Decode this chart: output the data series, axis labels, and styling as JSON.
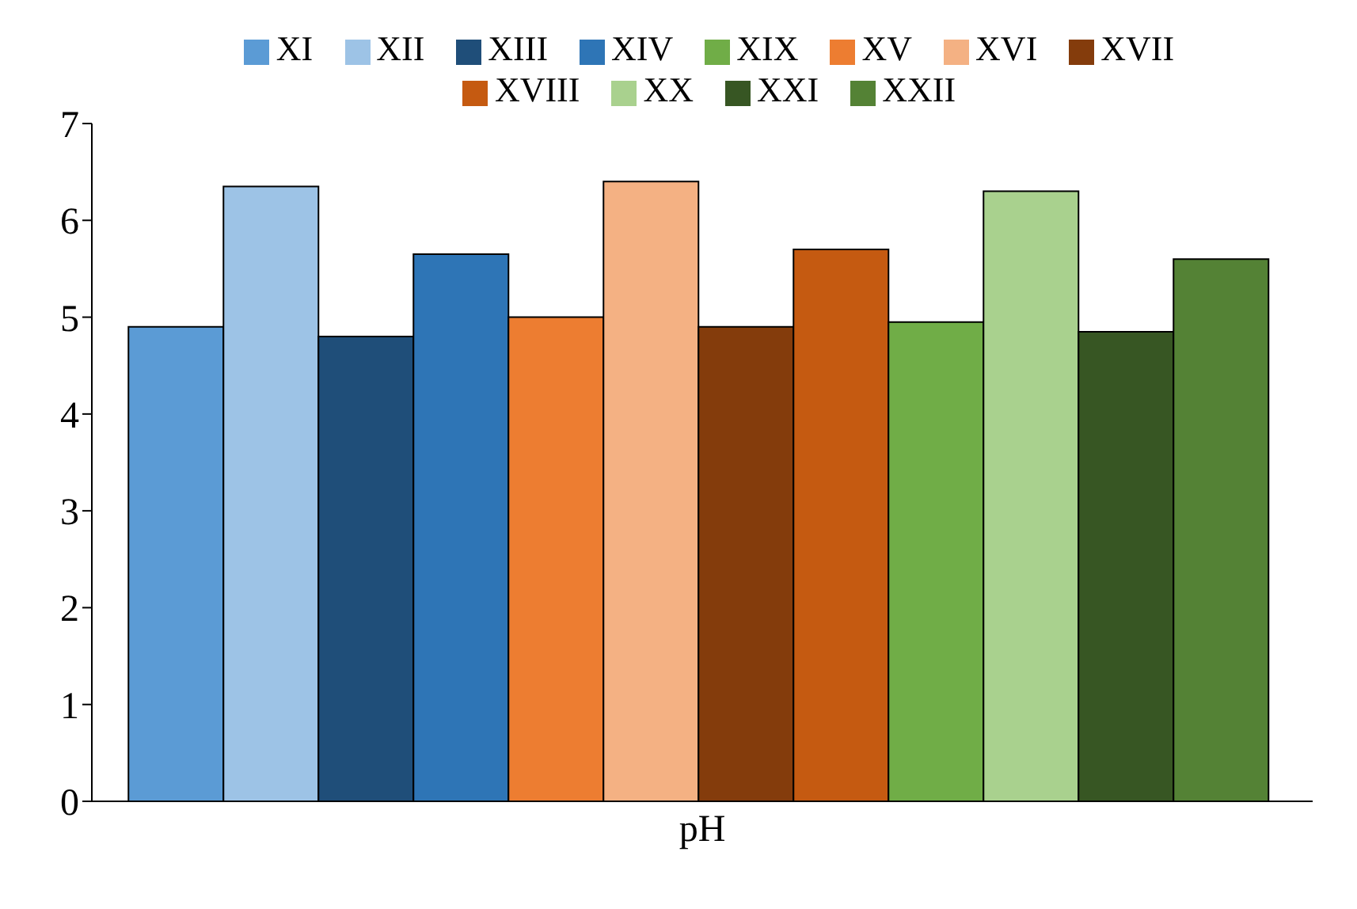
{
  "chart_data": {
    "type": "bar",
    "categories": [
      "pH"
    ],
    "ylim": [
      0,
      7
    ],
    "yticks": [
      0,
      1,
      2,
      3,
      4,
      5,
      6,
      7
    ],
    "grid": false,
    "legend": "top",
    "series": [
      {
        "name": "XI",
        "color": "#5b9bd5",
        "values": [
          4.9
        ]
      },
      {
        "name": "XII",
        "color": "#9dc3e6",
        "values": [
          6.35
        ]
      },
      {
        "name": "XIII",
        "color": "#1f4e79",
        "values": [
          4.8
        ]
      },
      {
        "name": "XIV",
        "color": "#2e75b6",
        "values": [
          5.65
        ]
      },
      {
        "name": "XV",
        "color": "#ed7d31",
        "values": [
          5.0
        ]
      },
      {
        "name": "XVI",
        "color": "#f4b183",
        "values": [
          6.4
        ]
      },
      {
        "name": "XVII",
        "color": "#843c0c",
        "values": [
          4.9
        ]
      },
      {
        "name": "XVIII",
        "color": "#c55a11",
        "values": [
          5.7
        ]
      },
      {
        "name": "XIX",
        "color": "#70ad47",
        "values": [
          4.95
        ]
      },
      {
        "name": "XX",
        "color": "#a9d18e",
        "values": [
          6.3
        ]
      },
      {
        "name": "XXI",
        "color": "#375623",
        "values": [
          4.85
        ]
      },
      {
        "name": "XXII",
        "color": "#548235",
        "values": [
          5.6
        ]
      }
    ]
  }
}
